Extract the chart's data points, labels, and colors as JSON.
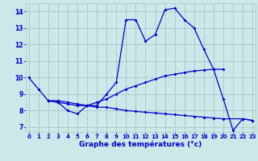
{
  "xlabel": "Graphe des températures (°c)",
  "bg_color": "#cce8e8",
  "grid_color": "#a8c8cc",
  "line_color": "#0000cc",
  "x_ticks": [
    0,
    1,
    2,
    3,
    4,
    5,
    6,
    7,
    8,
    9,
    10,
    11,
    12,
    13,
    14,
    15,
    16,
    17,
    18,
    19,
    20,
    21,
    22,
    23
  ],
  "y_ticks": [
    7,
    8,
    9,
    10,
    11,
    12,
    13,
    14
  ],
  "ylim": [
    6.7,
    14.5
  ],
  "xlim": [
    -0.3,
    23.3
  ],
  "series": [
    {
      "x": [
        0,
        1,
        2,
        3,
        4,
        5,
        6,
        7,
        8,
        9,
        10,
        11,
        12,
        13,
        14,
        15,
        16,
        17,
        18,
        19,
        20,
        21,
        22,
        23
      ],
      "y": [
        10.0,
        9.3,
        8.6,
        8.5,
        8.0,
        7.8,
        8.3,
        8.3,
        9.0,
        9.7,
        13.5,
        13.5,
        12.2,
        12.6,
        14.1,
        14.2,
        13.5,
        13.0,
        11.7,
        10.5,
        8.7,
        6.8,
        7.5,
        7.4
      ]
    },
    {
      "x": [
        2,
        3,
        4,
        5,
        6,
        7,
        8,
        9,
        10,
        11,
        12,
        13,
        14,
        15,
        16,
        17,
        18,
        19,
        20
      ],
      "y": [
        8.6,
        8.5,
        8.4,
        8.3,
        8.3,
        8.5,
        8.7,
        9.0,
        9.3,
        9.5,
        9.7,
        9.9,
        10.1,
        10.2,
        10.3,
        10.4,
        10.45,
        10.5,
        10.5
      ]
    },
    {
      "x": [
        2,
        3,
        4,
        5,
        6,
        7,
        8,
        9,
        10,
        11,
        12,
        13,
        14,
        15,
        16,
        17,
        18,
        19,
        20,
        22,
        23
      ],
      "y": [
        8.6,
        8.6,
        8.5,
        8.4,
        8.3,
        8.2,
        8.2,
        8.1,
        8.0,
        7.95,
        7.9,
        7.85,
        7.8,
        7.75,
        7.7,
        7.65,
        7.6,
        7.55,
        7.5,
        7.5,
        7.4
      ]
    }
  ]
}
